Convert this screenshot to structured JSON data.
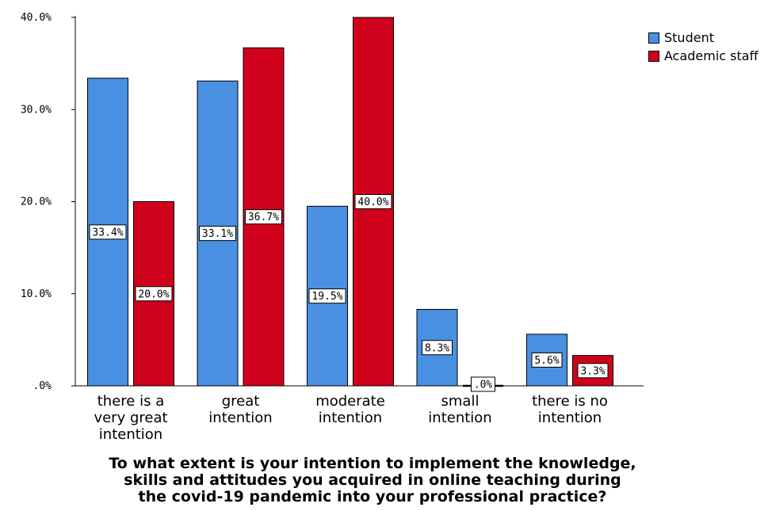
{
  "chart_data": {
    "type": "bar",
    "categories": [
      [
        "there is a",
        "very great",
        "intention"
      ],
      [
        "great",
        "intention"
      ],
      [
        "moderate",
        "intention"
      ],
      [
        "small",
        "intention"
      ],
      [
        "there is no",
        "intention"
      ]
    ],
    "series": [
      {
        "name": "Student",
        "color": "#4A90E2",
        "values": [
          33.4,
          33.1,
          19.5,
          8.3,
          5.6
        ],
        "labels": [
          "33.4%",
          "33.1%",
          "19.5%",
          "8.3%",
          "5.6%"
        ]
      },
      {
        "name": "Academic staff",
        "color": "#D0021B",
        "values": [
          20.0,
          36.7,
          40.0,
          0.0,
          3.3
        ],
        "labels": [
          "20.0%",
          "36.7%",
          "40.0%",
          ".0%",
          "3.3%"
        ]
      }
    ],
    "ylim": [
      0,
      40
    ],
    "yticks": [
      0,
      10,
      20,
      30,
      40
    ],
    "ytick_labels": [
      ".0%",
      "10.0%",
      "20.0%",
      "30.0%",
      "40.0%"
    ],
    "xlabel": [
      "To what extent is your intention to implement the knowledge,",
      "skills and attitudes you acquired in online teaching during",
      "the covid-19 pandemic into your professional practice?"
    ],
    "ylabel": "",
    "legend_position": "top-right",
    "grid": false
  }
}
